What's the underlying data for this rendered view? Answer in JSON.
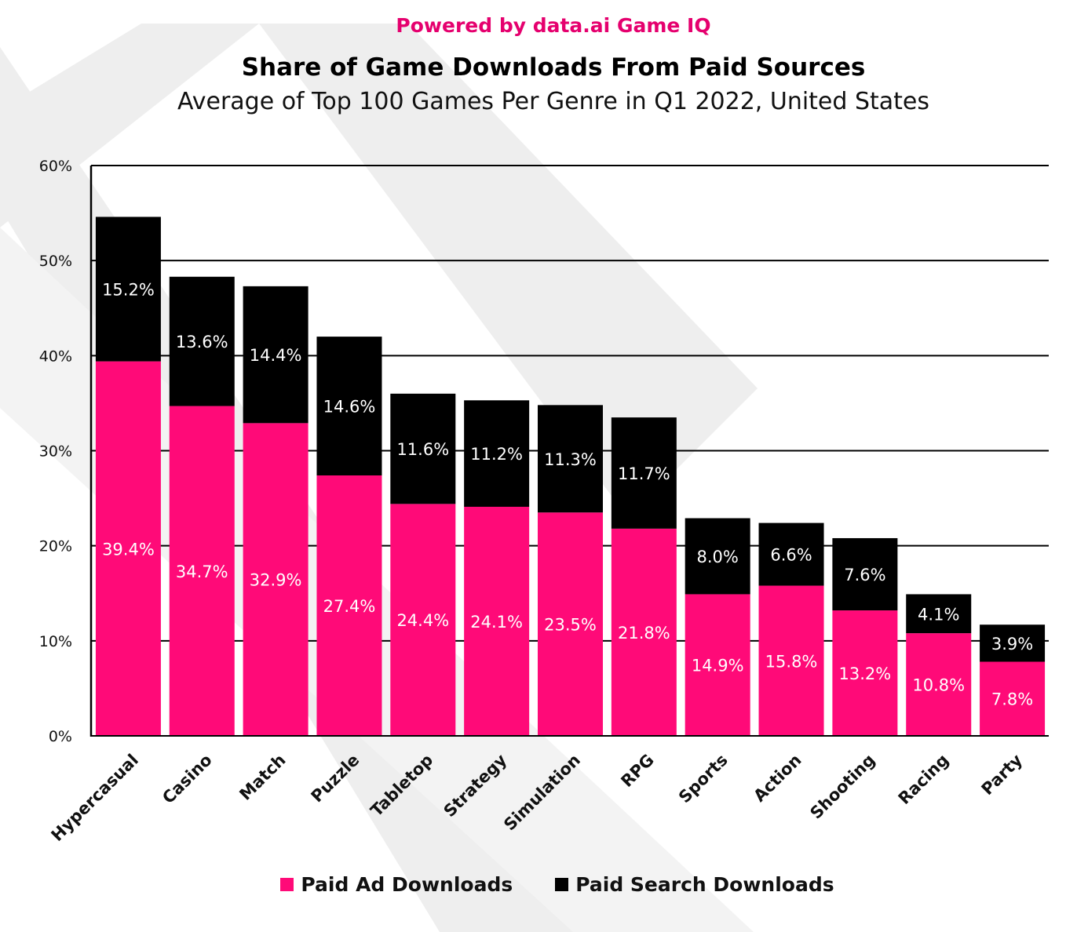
{
  "powered_by": "Powered by data.ai Game IQ",
  "colors": {
    "paid_ad": "#ff0a78",
    "paid_search": "#000000",
    "accent": "#e5006e",
    "watermark": "#eeeeee"
  },
  "chart_data": {
    "type": "bar",
    "stacked": true,
    "title": "Share of Game Downloads From Paid Sources",
    "subtitle": "Average of Top 100 Games Per Genre in Q1 2022, United States",
    "xlabel": "",
    "ylabel": "",
    "ylim": [
      0,
      60
    ],
    "yticks": [
      "0%",
      "10%",
      "20%",
      "30%",
      "40%",
      "50%",
      "60%"
    ],
    "grid": true,
    "legend_position": "bottom",
    "categories": [
      "Hypercasual",
      "Casino",
      "Match",
      "Puzzle",
      "Tabletop",
      "Strategy",
      "Simulation",
      "RPG",
      "Sports",
      "Action",
      "Shooting",
      "Racing",
      "Party"
    ],
    "series": [
      {
        "name": "Paid Ad Downloads",
        "values": [
          39.4,
          34.7,
          32.9,
          27.4,
          24.4,
          24.1,
          23.5,
          21.8,
          14.9,
          15.8,
          13.2,
          10.8,
          7.8
        ],
        "labels": [
          "39.4%",
          "34.7%",
          "32.9%",
          "27.4%",
          "24.4%",
          "24.1%",
          "23.5%",
          "21.8%",
          "14.9%",
          "15.8%",
          "13.2%",
          "10.8%",
          "7.8%"
        ]
      },
      {
        "name": "Paid Search Downloads",
        "values": [
          15.2,
          13.6,
          14.4,
          14.6,
          11.6,
          11.2,
          11.3,
          11.7,
          8.0,
          6.6,
          7.6,
          4.1,
          3.9
        ],
        "labels": [
          "15.2%",
          "13.6%",
          "14.4%",
          "14.6%",
          "11.6%",
          "11.2%",
          "11.3%",
          "11.7%",
          "8.0%",
          "6.6%",
          "7.6%",
          "4.1%",
          "3.9%"
        ]
      }
    ]
  }
}
